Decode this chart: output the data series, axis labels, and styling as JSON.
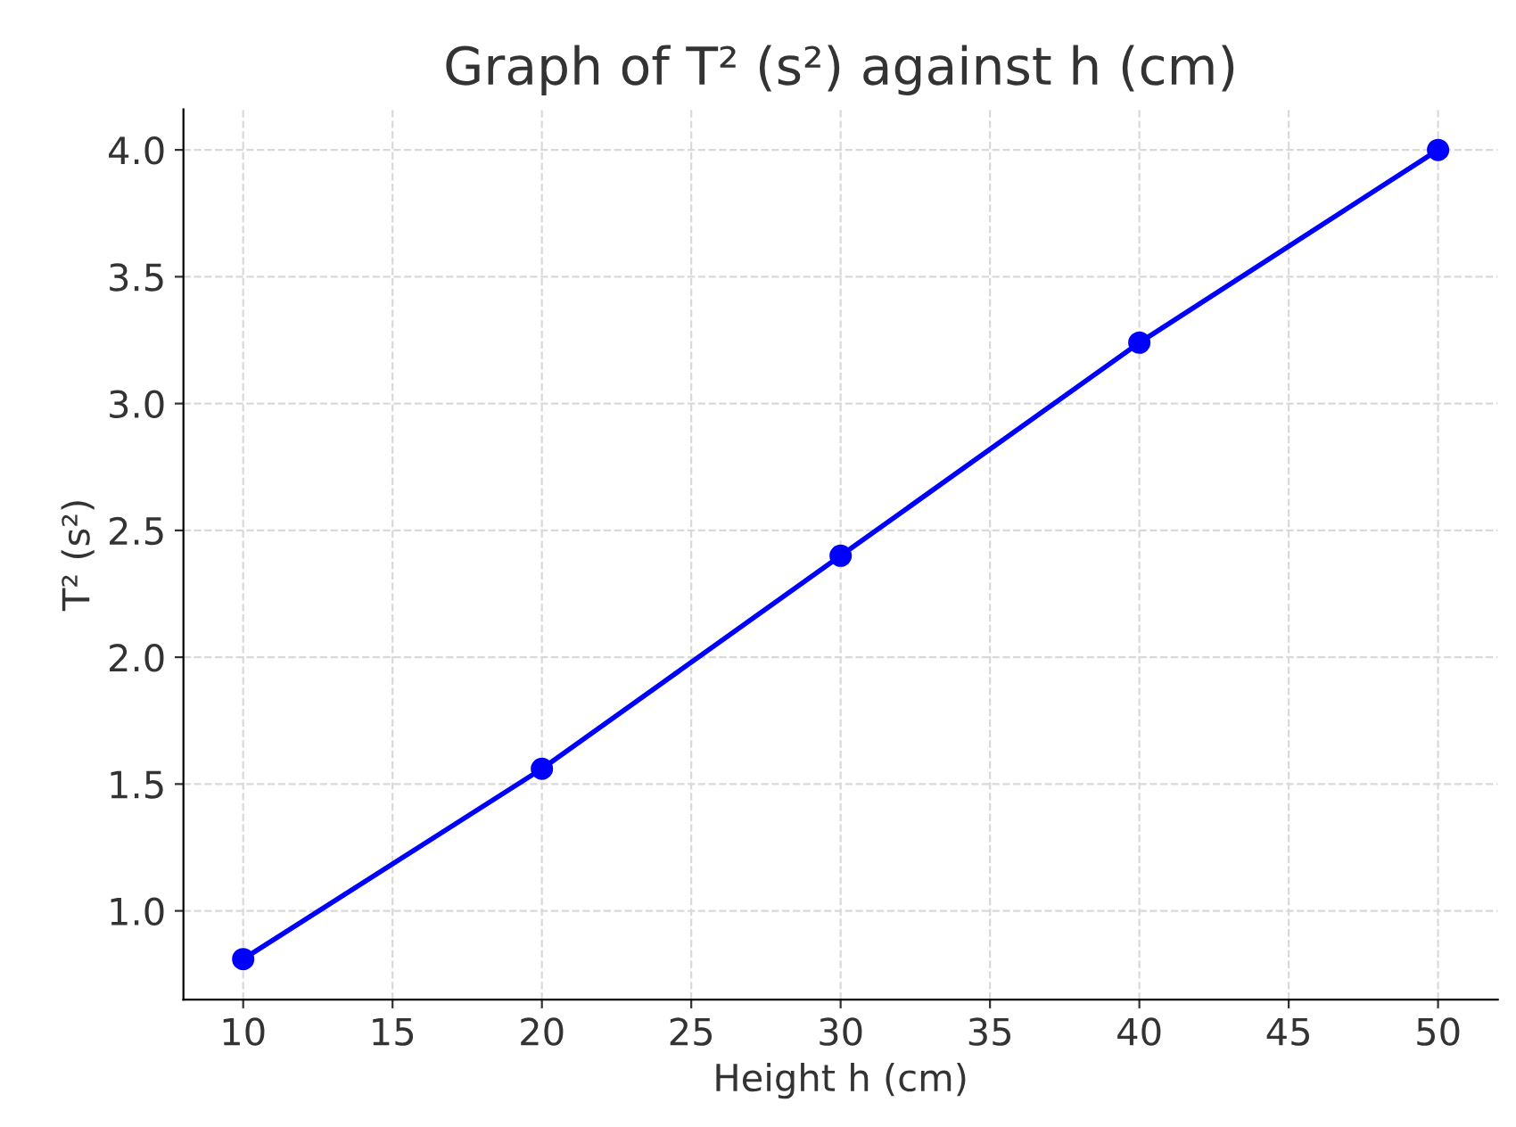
{
  "chart_data": {
    "type": "line",
    "title": "Graph of T² (s²) against h (cm)",
    "xlabel": "Height h (cm)",
    "ylabel": "T² (s²)",
    "x": [
      10,
      20,
      30,
      40,
      50
    ],
    "series": [
      {
        "color": "#0000ff",
        "values": [
          0.81,
          1.56,
          2.4,
          3.24,
          4.0
        ]
      }
    ],
    "marker": "circle",
    "line_style": "solid",
    "grid": true,
    "xlim": [
      8,
      52
    ],
    "xticks": [
      10,
      15,
      20,
      25,
      30,
      35,
      40,
      45,
      50
    ],
    "ylim": [
      0.65,
      4.16
    ],
    "yticks": [
      {
        "value": 1.0,
        "label": "1.0"
      },
      {
        "value": 1.5,
        "label": "1.5"
      },
      {
        "value": 2.0,
        "label": "2.0"
      },
      {
        "value": 2.5,
        "label": "2.5"
      },
      {
        "value": 3.0,
        "label": "3.0"
      },
      {
        "value": 3.5,
        "label": "3.5"
      },
      {
        "value": 4.0,
        "label": "4.0"
      }
    ]
  }
}
